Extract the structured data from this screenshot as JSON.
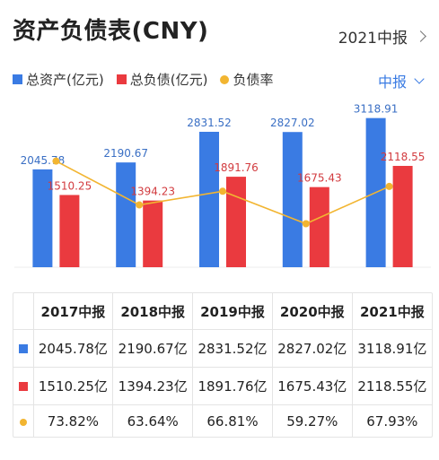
{
  "header": {
    "title": "资产负债表(CNY)",
    "period_link": "2021中报"
  },
  "legend": {
    "items": [
      {
        "label": "总资产(亿元)",
        "color": "#3a7be3",
        "shape": "square"
      },
      {
        "label": "总负债(亿元)",
        "color": "#ea3a3f",
        "shape": "square"
      },
      {
        "label": "负债率",
        "color": "#f2b531",
        "shape": "dot"
      }
    ]
  },
  "dropdown": {
    "label": "中报"
  },
  "chart_data": {
    "type": "bar",
    "categories": [
      "2017中报",
      "2018中报",
      "2019中报",
      "2020中报",
      "2021中报"
    ],
    "series": [
      {
        "name": "总资产(亿元)",
        "values": [
          2045.78,
          2190.67,
          2831.52,
          2827.02,
          3118.91
        ],
        "color": "#3a7be3"
      },
      {
        "name": "总负债(亿元)",
        "values": [
          1510.25,
          1394.23,
          1891.76,
          1675.43,
          2118.55
        ],
        "color": "#ea3a3f"
      }
    ],
    "line_series": {
      "name": "负债率",
      "values": [
        73.82,
        63.64,
        66.81,
        59.27,
        67.93
      ],
      "color": "#f2b531"
    },
    "bar_labels": {
      "assets": [
        "2045.78",
        "2190.67",
        "2831.52",
        "2827.02",
        "3118.91"
      ],
      "liabilities": [
        "1510.25",
        "1394.23",
        "1891.76",
        "1675.43",
        "2118.55"
      ]
    },
    "ylim": [
      0,
      3300
    ],
    "line_ylim": [
      55,
      80
    ]
  },
  "table": {
    "headers": [
      "2017中报",
      "2018中报",
      "2019中报",
      "2020中报",
      "2021中报"
    ],
    "rows": [
      {
        "marker": "square",
        "color": "#3a7be3",
        "cells": [
          "2045.78亿",
          "2190.67亿",
          "2831.52亿",
          "2827.02亿",
          "3118.91亿"
        ]
      },
      {
        "marker": "square",
        "color": "#ea3a3f",
        "cells": [
          "1510.25亿",
          "1394.23亿",
          "1891.76亿",
          "1675.43亿",
          "2118.55亿"
        ]
      },
      {
        "marker": "dot",
        "color": "#f2b531",
        "cells": [
          "73.82%",
          "63.64%",
          "66.81%",
          "59.27%",
          "67.93%"
        ]
      }
    ]
  }
}
